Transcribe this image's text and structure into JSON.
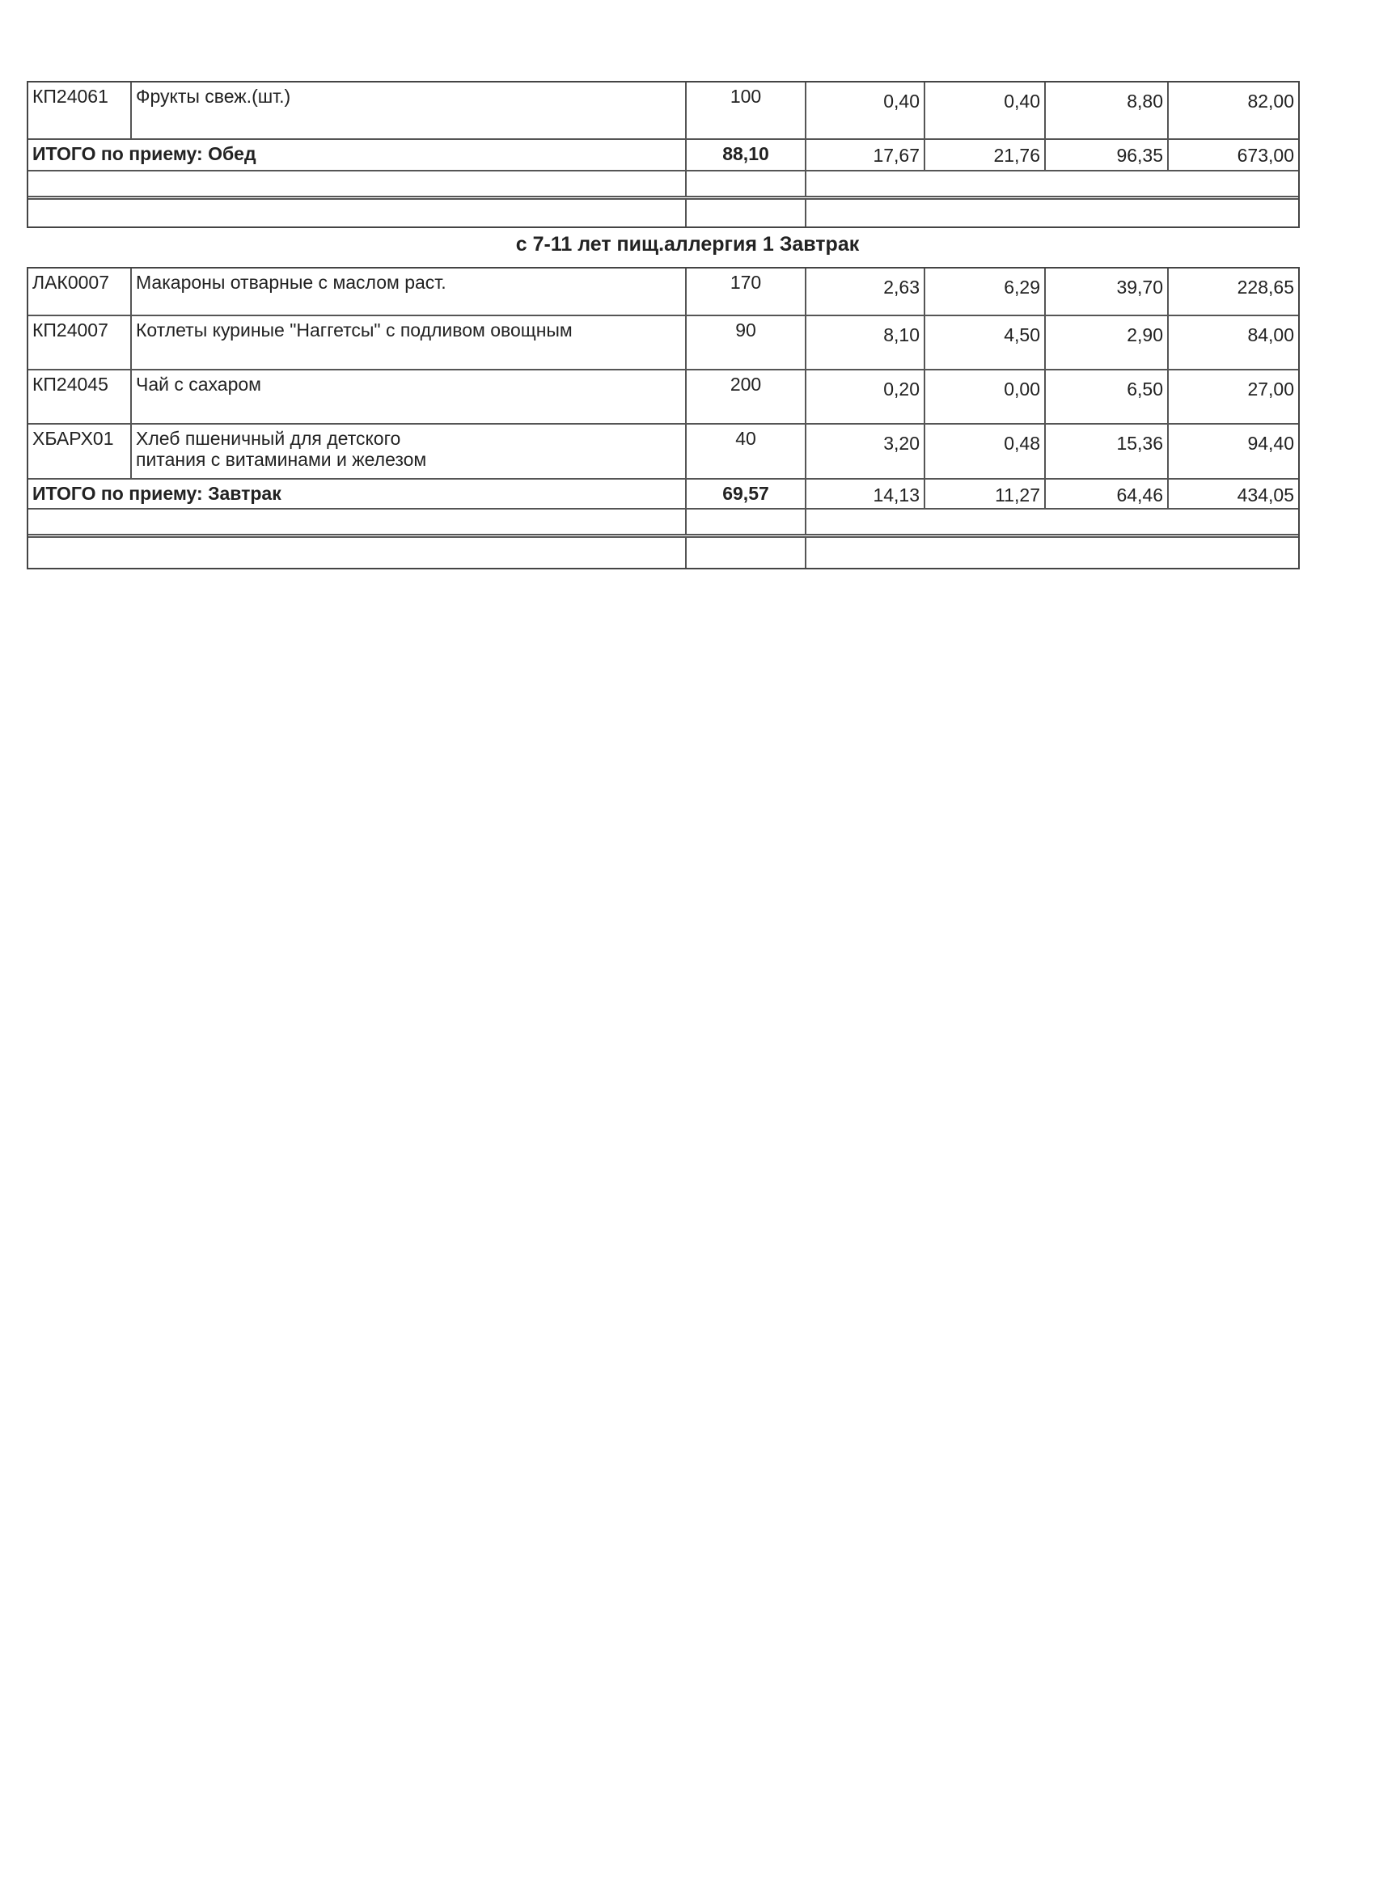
{
  "lunch_table": {
    "rows": [
      {
        "code": "КП24061",
        "name": "Фрукты свеж.(шт.)",
        "qty": "100",
        "p": "0,40",
        "f": "0,40",
        "c": "8,80",
        "kcal": "82,00"
      }
    ],
    "total": {
      "label": "ИТОГО по приему: Обед",
      "qty": "88,10",
      "p": "17,67",
      "f": "21,76",
      "c": "96,35",
      "kcal": "673,00"
    }
  },
  "section_title": "с 7-11 лет пищ.аллергия 1 Завтрак",
  "breakfast_table": {
    "rows": [
      {
        "code": "ЛАК0007",
        "name": "Макароны отварные с маслом раст.",
        "qty": "170",
        "p": "2,63",
        "f": "6,29",
        "c": "39,70",
        "kcal": "228,65"
      },
      {
        "code": "КП24007",
        "name": "Котлеты куриные \"Наггетсы\" с подливом овощным",
        "qty": "90",
        "p": "8,10",
        "f": "4,50",
        "c": "2,90",
        "kcal": "84,00"
      },
      {
        "code": "КП24045",
        "name": "Чай с сахаром",
        "qty": "200",
        "p": "0,20",
        "f": "0,00",
        "c": "6,50",
        "kcal": "27,00"
      },
      {
        "code": "ХБАРХ01",
        "name": "Хлеб пшеничный для детского питания с витаминами и железом",
        "qty": "40",
        "p": "3,20",
        "f": "0,48",
        "c": "15,36",
        "kcal": "94,40"
      }
    ],
    "total": {
      "label": "ИТОГО по приему: Завтрак",
      "qty": "69,57",
      "p": "14,13",
      "f": "11,27",
      "c": "64,46",
      "kcal": "434,05"
    }
  }
}
